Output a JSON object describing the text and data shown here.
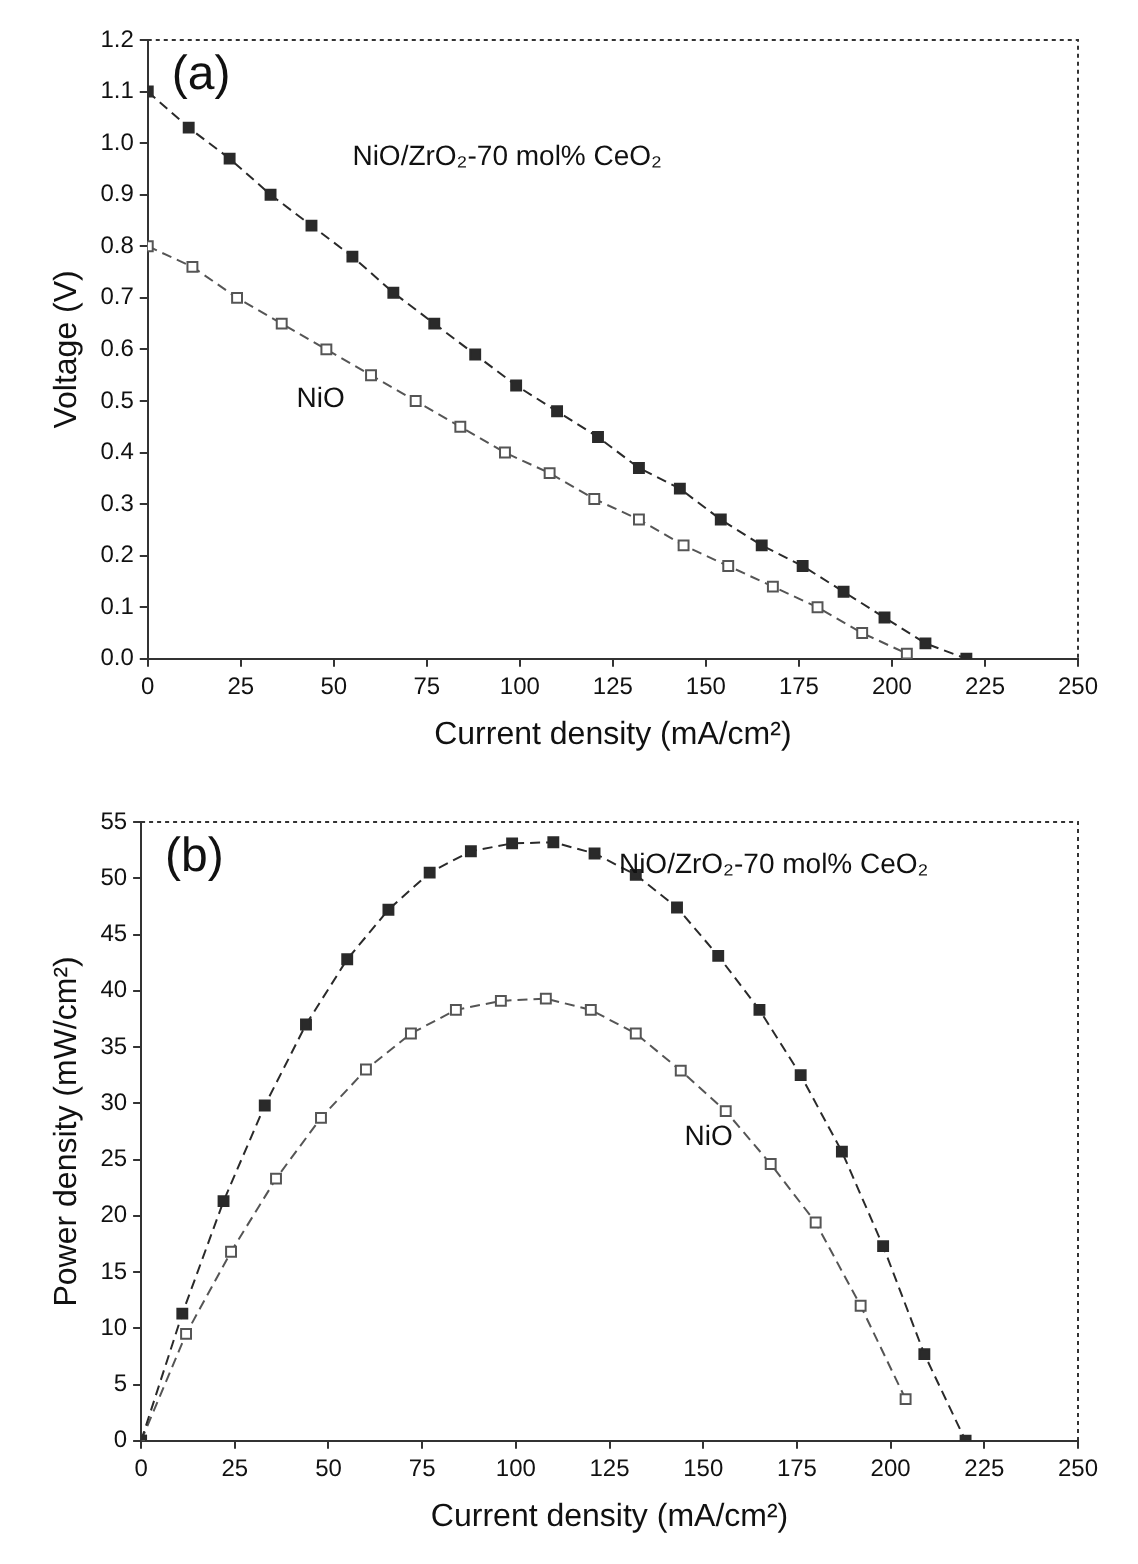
{
  "chart_data": [
    {
      "type": "line",
      "xlabel": "Current density (mA/cm²)",
      "ylabel": "Voltage (V)",
      "xlim": [
        0,
        250
      ],
      "ylim": [
        0,
        1.2
      ],
      "xticks": [
        0,
        25,
        50,
        75,
        100,
        125,
        150,
        175,
        200,
        225,
        250
      ],
      "yticks": [
        {
          "value": 0,
          "label": "0.0"
        },
        {
          "value": 0.1,
          "label": "0.1"
        },
        {
          "value": 0.2,
          "label": "0.2"
        },
        {
          "value": 0.3,
          "label": "0.3"
        },
        {
          "value": 0.4,
          "label": "0.4"
        },
        {
          "value": 0.5,
          "label": "0.5"
        },
        {
          "value": 0.6,
          "label": "0.6"
        },
        {
          "value": 0.7,
          "label": "0.7"
        },
        {
          "value": 0.8,
          "label": "0.8"
        },
        {
          "value": 0.9,
          "label": "0.9"
        },
        {
          "value": 1,
          "label": "1.0"
        },
        {
          "value": 1.1,
          "label": "1.1"
        },
        {
          "value": 1.2,
          "label": "1.2"
        }
      ],
      "grid": false,
      "legend": false,
      "marker": "square",
      "line_style": "dashed",
      "annotations": [
        "(a)"
      ],
      "series": [
        {
          "name": "NiO/ZrO₂-70 mol% CeO₂",
          "color": "#2a2a2a",
          "x": [
            0,
            11,
            22,
            33,
            44,
            55,
            66,
            77,
            88,
            99,
            110,
            121,
            132,
            143,
            154,
            165,
            176,
            187,
            198,
            209,
            220
          ],
          "values": [
            1.1,
            1.03,
            0.97,
            0.9,
            0.84,
            0.78,
            0.71,
            0.65,
            0.59,
            0.53,
            0.48,
            0.43,
            0.37,
            0.33,
            0.27,
            0.22,
            0.18,
            0.13,
            0.08,
            0.03,
            0.0
          ]
        },
        {
          "name": "NiO",
          "color": "#555555",
          "x": [
            0,
            12,
            24,
            36,
            48,
            60,
            72,
            84,
            96,
            108,
            120,
            132,
            144,
            156,
            168,
            180,
            192,
            204
          ],
          "values": [
            0.8,
            0.76,
            0.7,
            0.65,
            0.6,
            0.55,
            0.5,
            0.45,
            0.4,
            0.36,
            0.31,
            0.27,
            0.22,
            0.18,
            0.14,
            0.1,
            0.05,
            0.01
          ]
        }
      ]
    },
    {
      "type": "line",
      "xlabel": "Current density (mA/cm²)",
      "ylabel": "Power density (mW/cm²)",
      "xlim": [
        0,
        250
      ],
      "ylim": [
        0,
        55
      ],
      "xticks": [
        0,
        25,
        50,
        75,
        100,
        125,
        150,
        175,
        200,
        225,
        250
      ],
      "yticks": [
        0,
        5,
        10,
        15,
        20,
        25,
        30,
        35,
        40,
        45,
        50,
        55
      ],
      "grid": false,
      "legend": false,
      "marker": "square",
      "line_style": "dashed",
      "annotations": [
        "(b)"
      ],
      "series": [
        {
          "name": "NiO/ZrO₂-70 mol% CeO₂",
          "color": "#2a2a2a",
          "x": [
            0,
            11,
            22,
            33,
            44,
            55,
            66,
            77,
            88,
            99,
            110,
            121,
            132,
            143,
            154,
            165,
            176,
            187,
            198,
            209,
            220
          ],
          "values": [
            0,
            11.3,
            21.3,
            29.8,
            37.0,
            42.8,
            47.2,
            50.5,
            52.4,
            53.1,
            53.2,
            52.2,
            50.3,
            47.4,
            43.1,
            38.3,
            32.5,
            25.7,
            17.3,
            7.7,
            0
          ]
        },
        {
          "name": "NiO",
          "color": "#555555",
          "x": [
            0,
            12,
            24,
            36,
            48,
            60,
            72,
            84,
            96,
            108,
            120,
            132,
            144,
            156,
            168,
            180,
            192,
            204
          ],
          "values": [
            0,
            9.5,
            16.8,
            23.3,
            28.7,
            33.0,
            36.2,
            38.3,
            39.1,
            39.3,
            38.3,
            36.2,
            32.9,
            29.3,
            24.6,
            19.4,
            12.0,
            3.7
          ]
        }
      ]
    }
  ]
}
